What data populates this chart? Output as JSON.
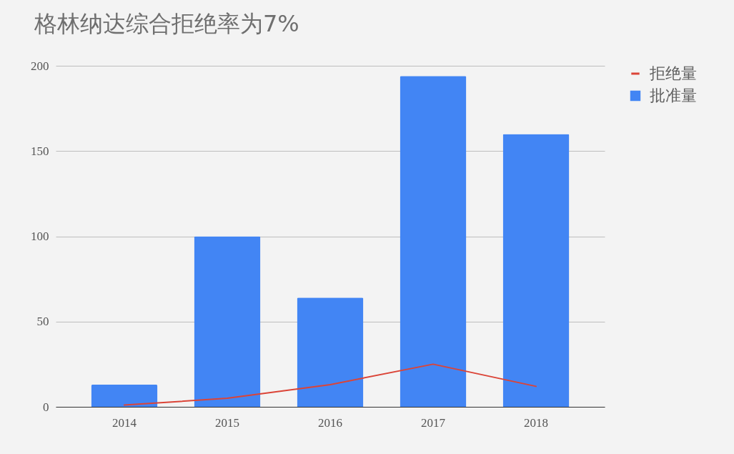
{
  "chart_data": {
    "type": "bar",
    "title": "格林纳达综合拒绝率为7%",
    "categories": [
      "2014",
      "2015",
      "2016",
      "2017",
      "2018"
    ],
    "series": [
      {
        "name": "拒绝量",
        "type": "line",
        "color": "#db4437",
        "values": [
          1,
          5,
          13,
          25,
          12
        ]
      },
      {
        "name": "批准量",
        "color": "#4285f4",
        "values": [
          13,
          100,
          64,
          194,
          160
        ]
      }
    ],
    "ylim": [
      0,
      200
    ],
    "yticks": [
      0,
      50,
      100,
      150,
      200
    ],
    "grid": "y",
    "legend": "top right",
    "marker": "none",
    "line_style": "solid"
  }
}
